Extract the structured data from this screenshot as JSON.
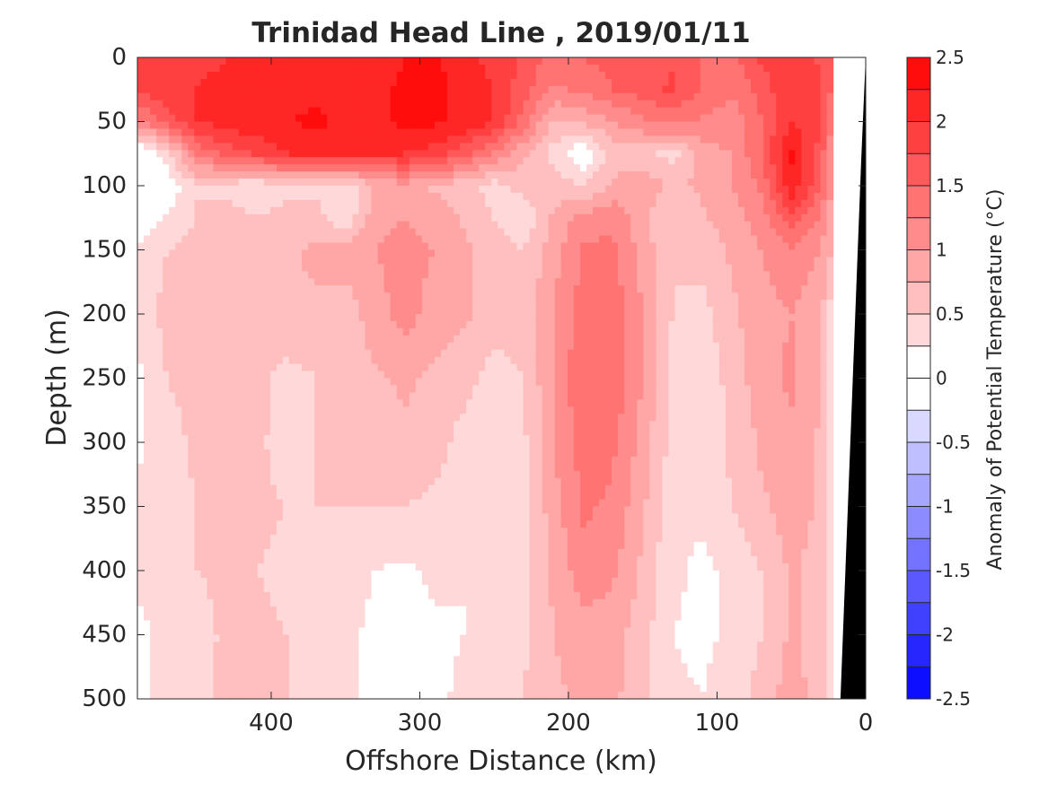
{
  "chart_data": {
    "type": "heatmap",
    "title": "Trinidad Head Line , 2019/01/11",
    "xlabel": "Offshore Distance (km)",
    "ylabel": "Depth (m)",
    "colorbar_label": "Anomaly of Potential Temperature (°C)",
    "xlim": [
      490,
      0
    ],
    "ylim": [
      0,
      500
    ],
    "y_reversed": true,
    "x_reversed": true,
    "x_ticks": [
      "400",
      "300",
      "200",
      "100",
      "0"
    ],
    "x_tick_values": [
      400,
      300,
      200,
      100,
      0
    ],
    "y_ticks": [
      "0",
      "50",
      "100",
      "150",
      "200",
      "250",
      "300",
      "350",
      "400",
      "450",
      "500"
    ],
    "y_tick_values": [
      0,
      50,
      100,
      150,
      200,
      250,
      300,
      350,
      400,
      450,
      500
    ],
    "colorbar_ticks": [
      "2.5",
      "2",
      "1.5",
      "1",
      "0.5",
      "0",
      "-0.5",
      "-1",
      "-1.5",
      "-2",
      "-2.5"
    ],
    "colorbar_tick_values": [
      2.5,
      2,
      1.5,
      1,
      0.5,
      0,
      -0.5,
      -1,
      -1.5,
      -2,
      -2.5
    ],
    "contour_levels": [
      -2.5,
      -2.25,
      -2,
      -1.75,
      -1.5,
      -1.25,
      -1,
      -0.75,
      -0.5,
      -0.25,
      0,
      0.25,
      0.5,
      0.75,
      1,
      1.25,
      1.5,
      1.75,
      2,
      2.25,
      2.5
    ],
    "x": [
      490,
      470,
      450,
      430,
      410,
      390,
      370,
      350,
      330,
      310,
      290,
      270,
      250,
      230,
      210,
      190,
      170,
      150,
      130,
      110,
      90,
      70,
      50,
      30,
      22
    ],
    "y": [
      0,
      25,
      50,
      75,
      100,
      125,
      150,
      200,
      250,
      300,
      350,
      400,
      450,
      500
    ],
    "values": [
      [
        1.75,
        1.8,
        1.9,
        2.0,
        2.05,
        2.1,
        2.1,
        2.0,
        2.1,
        2.25,
        2.3,
        2.1,
        1.9,
        1.7,
        1.4,
        1.5,
        1.6,
        1.55,
        1.7,
        1.5,
        1.4,
        1.8,
        2.0,
        1.7,
        1.5
      ],
      [
        1.8,
        1.9,
        2.0,
        2.1,
        2.1,
        2.15,
        2.2,
        2.1,
        2.2,
        2.3,
        2.3,
        2.2,
        2.0,
        1.6,
        1.2,
        1.3,
        1.5,
        1.6,
        1.8,
        1.5,
        1.3,
        1.6,
        2.0,
        1.8,
        1.4
      ],
      [
        1.2,
        1.6,
        2.0,
        2.1,
        2.2,
        2.25,
        2.3,
        2.2,
        2.2,
        2.3,
        2.3,
        2.2,
        2.0,
        1.4,
        0.7,
        0.8,
        1.0,
        1.2,
        1.3,
        1.2,
        1.1,
        1.5,
        2.0,
        1.8,
        1.2
      ],
      [
        -0.1,
        0.4,
        1.3,
        1.6,
        1.8,
        2.0,
        2.1,
        2.0,
        2.0,
        2.0,
        1.9,
        1.6,
        1.2,
        0.8,
        0.4,
        0.0,
        0.6,
        0.6,
        0.4,
        0.9,
        1.0,
        1.5,
        2.3,
        1.6,
        1.0
      ],
      [
        -0.3,
        0.05,
        0.5,
        0.4,
        0.3,
        0.4,
        0.45,
        0.3,
        0.8,
        0.9,
        0.7,
        0.6,
        0.4,
        0.6,
        0.6,
        0.5,
        0.8,
        0.9,
        0.7,
        0.8,
        1.0,
        1.3,
        2.2,
        1.5,
        0.9
      ],
      [
        -0.05,
        0.3,
        0.5,
        0.6,
        0.5,
        0.6,
        0.6,
        0.3,
        0.9,
        1.0,
        0.9,
        0.7,
        0.5,
        0.3,
        0.8,
        1.1,
        1.2,
        0.8,
        0.5,
        0.7,
        0.9,
        1.1,
        1.7,
        1.2,
        0.8
      ],
      [
        0.3,
        0.5,
        0.6,
        0.6,
        0.65,
        0.7,
        0.8,
        0.9,
        1.0,
        1.1,
        1.0,
        0.8,
        0.6,
        0.5,
        0.9,
        1.3,
        1.3,
        0.9,
        0.5,
        0.6,
        0.8,
        1.0,
        1.2,
        1.0,
        0.7
      ],
      [
        0.3,
        0.6,
        0.7,
        0.75,
        0.7,
        0.75,
        0.7,
        0.6,
        0.9,
        1.1,
        0.9,
        0.8,
        0.6,
        0.6,
        1.0,
        1.35,
        1.4,
        1.0,
        0.5,
        0.4,
        0.7,
        0.9,
        1.0,
        0.8,
        0.25
      ],
      [
        0.2,
        0.5,
        0.6,
        0.7,
        0.6,
        0.4,
        0.5,
        0.6,
        0.7,
        0.8,
        0.7,
        0.6,
        0.4,
        0.5,
        1.0,
        1.5,
        1.45,
        1.0,
        0.4,
        0.3,
        0.6,
        0.9,
        1.05,
        0.8,
        0.2
      ],
      [
        0.2,
        0.4,
        0.55,
        0.6,
        0.55,
        0.4,
        0.5,
        0.55,
        0.6,
        0.7,
        0.6,
        0.4,
        0.3,
        0.45,
        1.0,
        1.35,
        1.3,
        0.9,
        0.4,
        0.3,
        0.55,
        0.8,
        0.95,
        0.7,
        0.2
      ],
      [
        0.3,
        0.4,
        0.5,
        0.6,
        0.55,
        0.5,
        0.5,
        0.5,
        0.5,
        0.5,
        0.45,
        0.35,
        0.3,
        0.4,
        0.9,
        1.3,
        1.2,
        0.8,
        0.3,
        0.3,
        0.5,
        0.7,
        0.9,
        0.7,
        0.2
      ],
      [
        0.3,
        0.4,
        0.5,
        0.55,
        0.5,
        0.45,
        0.4,
        0.35,
        0.25,
        0.2,
        0.3,
        0.25,
        0.3,
        0.4,
        0.8,
        1.15,
        1.05,
        0.7,
        0.3,
        0.2,
        0.3,
        0.5,
        0.8,
        0.6,
        0.2
      ],
      [
        0.2,
        0.3,
        0.4,
        0.55,
        0.55,
        0.5,
        0.4,
        0.3,
        0.2,
        0.1,
        0.2,
        0.25,
        0.3,
        0.45,
        0.75,
        0.9,
        0.85,
        0.6,
        0.25,
        0.2,
        0.3,
        0.5,
        0.8,
        0.6,
        0.2
      ],
      [
        0.2,
        0.3,
        0.45,
        0.55,
        0.55,
        0.5,
        0.4,
        0.3,
        0.2,
        0.1,
        0.2,
        0.3,
        0.35,
        0.5,
        0.7,
        0.8,
        0.8,
        0.6,
        0.3,
        0.25,
        0.35,
        0.6,
        0.9,
        0.6,
        0.25
      ]
    ],
    "land_mask_color": "#000000",
    "nodata_color": "#ffffff",
    "colormap": "blue-white-red",
    "grid": false,
    "colorbar_position": "right"
  }
}
